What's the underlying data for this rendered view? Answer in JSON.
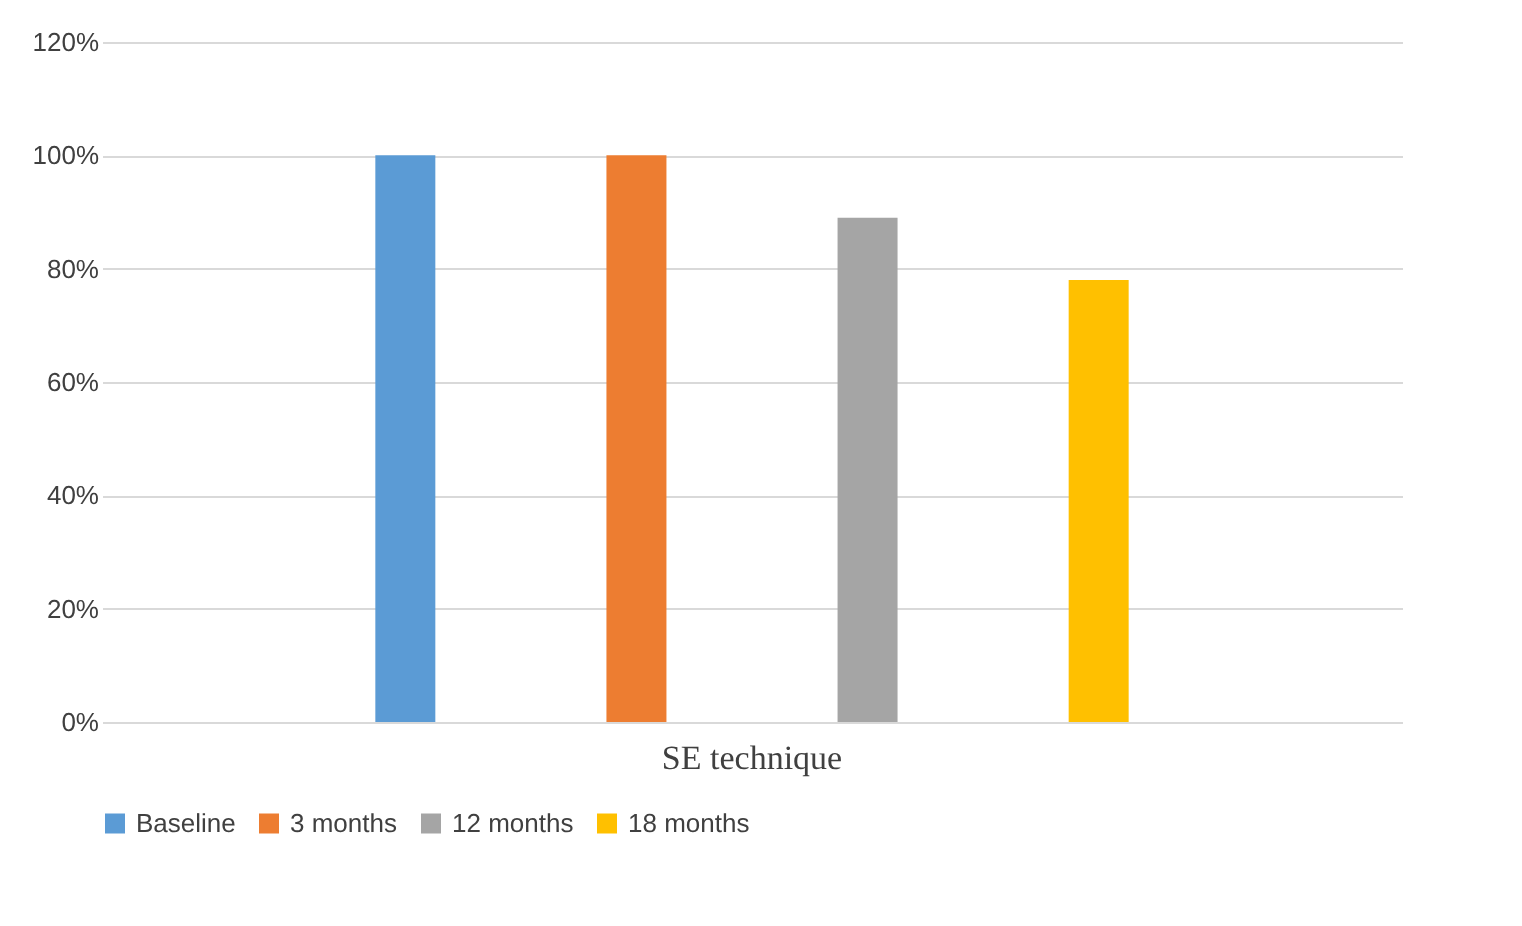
{
  "chart_data": {
    "type": "bar",
    "categories": [
      "SE technique"
    ],
    "series": [
      {
        "name": "Baseline",
        "color": "#5b9bd5",
        "values": [
          100
        ]
      },
      {
        "name": "3 months",
        "color": "#ed7d31",
        "values": [
          100
        ]
      },
      {
        "name": "12 months",
        "color": "#a5a5a5",
        "values": [
          89
        ]
      },
      {
        "name": "18 months",
        "color": "#ffc000",
        "values": [
          78
        ]
      }
    ],
    "ylim": [
      0,
      120
    ],
    "yticks": [
      {
        "value": 0,
        "label": "0%"
      },
      {
        "value": 20,
        "label": "20%"
      },
      {
        "value": 40,
        "label": "40%"
      },
      {
        "value": 60,
        "label": "60%"
      },
      {
        "value": 80,
        "label": "80%"
      },
      {
        "value": 100,
        "label": "100%"
      },
      {
        "value": 120,
        "label": "120%"
      }
    ],
    "grid": "y",
    "legend": "bottom"
  }
}
